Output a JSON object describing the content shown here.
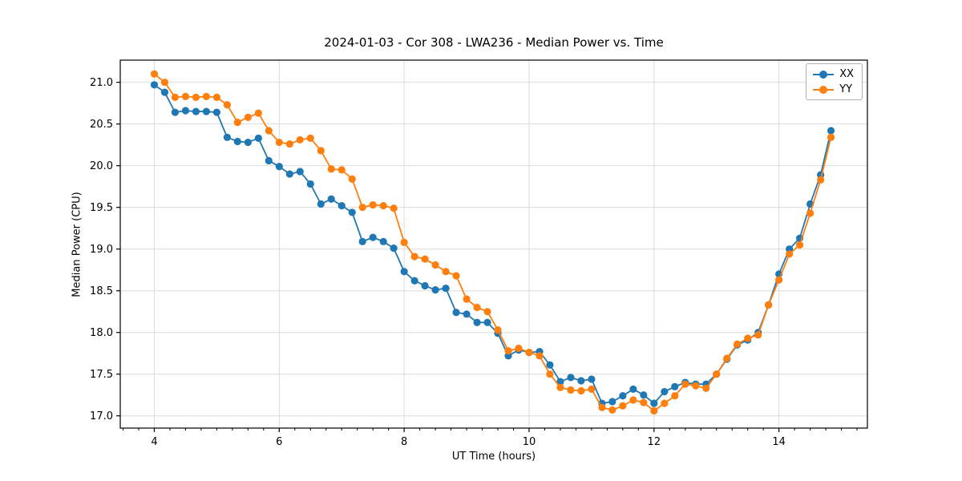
{
  "chart_data": {
    "type": "line",
    "title": "2024-01-03 - Cor 308 - LWA236 - Median Power vs. Time",
    "xlabel": "UT Time (hours)",
    "ylabel": "Median Power (CPU)",
    "xlim": [
      3.455,
      15.416
    ],
    "ylim": [
      16.853,
      21.266
    ],
    "xticks": [
      4,
      6,
      8,
      10,
      12,
      14
    ],
    "minor_xtick_step": 0.25,
    "yticks": [
      17.0,
      17.5,
      18.0,
      18.5,
      19.0,
      19.5,
      20.0,
      20.5,
      21.0
    ],
    "grid": true,
    "legend_position": "upper right",
    "x": [
      4.0,
      4.167,
      4.333,
      4.5,
      4.667,
      4.833,
      5.0,
      5.167,
      5.333,
      5.5,
      5.667,
      5.833,
      6.0,
      6.167,
      6.333,
      6.5,
      6.667,
      6.833,
      7.0,
      7.167,
      7.333,
      7.5,
      7.667,
      7.833,
      8.0,
      8.167,
      8.333,
      8.5,
      8.667,
      8.833,
      9.0,
      9.167,
      9.333,
      9.5,
      9.667,
      9.833,
      10.0,
      10.167,
      10.333,
      10.5,
      10.667,
      10.833,
      11.0,
      11.167,
      11.333,
      11.5,
      11.667,
      11.833,
      12.0,
      12.167,
      12.333,
      12.5,
      12.667,
      12.833,
      13.0,
      13.167,
      13.333,
      13.5,
      13.667,
      13.833,
      14.0,
      14.167,
      14.333,
      14.5,
      14.667,
      14.833
    ],
    "series": [
      {
        "name": "XX",
        "color": "#1f77b4",
        "values": [
          20.97,
          20.88,
          20.64,
          20.66,
          20.65,
          20.65,
          20.64,
          20.34,
          20.29,
          20.28,
          20.33,
          20.06,
          19.99,
          19.9,
          19.93,
          19.78,
          19.54,
          19.6,
          19.52,
          19.44,
          19.09,
          19.14,
          19.09,
          19.01,
          18.73,
          18.62,
          18.56,
          18.51,
          18.53,
          18.24,
          18.22,
          18.12,
          18.12,
          17.99,
          17.72,
          17.79,
          17.76,
          17.77,
          17.61,
          17.41,
          17.46,
          17.42,
          17.44,
          17.15,
          17.17,
          17.24,
          17.32,
          17.25,
          17.15,
          17.29,
          17.35,
          17.4,
          17.38,
          17.38,
          17.5,
          17.68,
          17.85,
          17.91,
          18.0,
          18.33,
          18.7,
          19.0,
          19.13,
          19.54,
          19.89,
          20.42
        ]
      },
      {
        "name": "YY",
        "color": "#ff7f0e",
        "values": [
          21.1,
          21.0,
          20.82,
          20.83,
          20.82,
          20.83,
          20.82,
          20.73,
          20.52,
          20.58,
          20.63,
          20.42,
          20.28,
          20.26,
          20.31,
          20.33,
          20.18,
          19.96,
          19.95,
          19.84,
          19.5,
          19.53,
          19.52,
          19.49,
          19.08,
          18.91,
          18.88,
          18.81,
          18.73,
          18.68,
          18.4,
          18.3,
          18.25,
          18.03,
          17.78,
          17.81,
          17.76,
          17.72,
          17.5,
          17.34,
          17.31,
          17.3,
          17.32,
          17.1,
          17.07,
          17.12,
          17.19,
          17.16,
          17.06,
          17.15,
          17.24,
          17.38,
          17.36,
          17.33,
          17.5,
          17.69,
          17.86,
          17.93,
          17.97,
          18.33,
          18.63,
          18.94,
          19.05,
          19.43,
          19.83,
          20.34
        ]
      }
    ],
    "colors": {
      "grid": "#dcdcdc",
      "spine": "#000000",
      "background": "#ffffff",
      "legend_border": "#b0b0b0"
    }
  }
}
